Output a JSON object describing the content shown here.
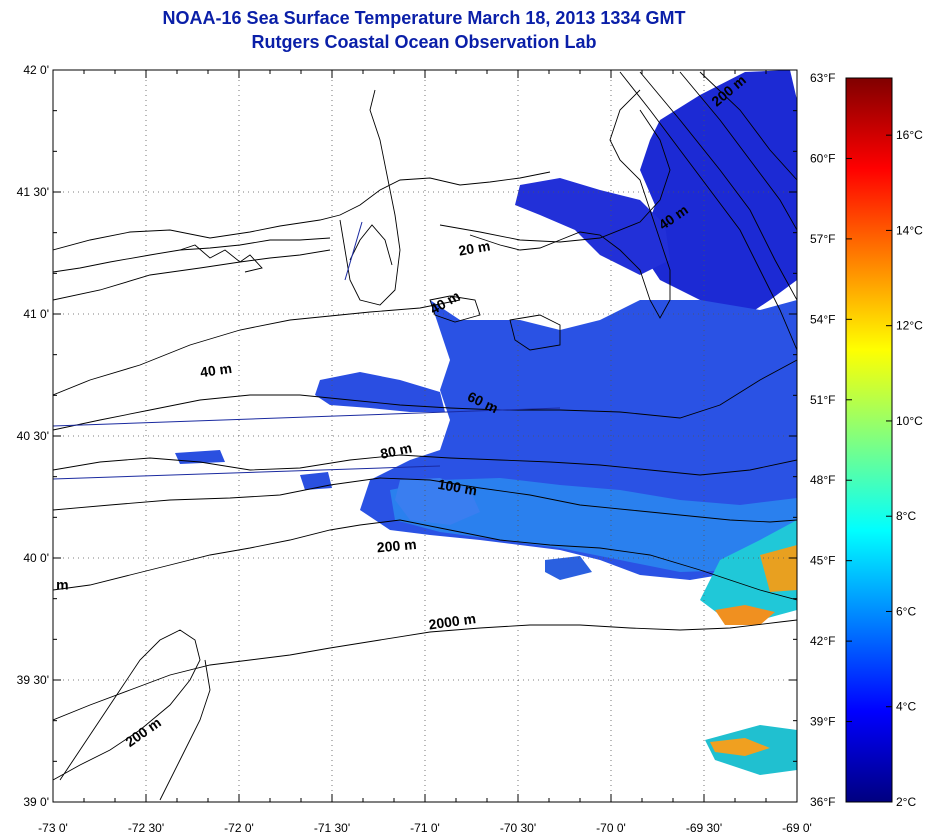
{
  "title": {
    "line1": "NOAA-16 Sea Surface Temperature March 18, 2013 1334 GMT",
    "line2": "Rutgers Coastal Ocean Observation Lab"
  },
  "map": {
    "lat_range": [
      39.0,
      42.0
    ],
    "lon_range": [
      -73.0,
      -69.0
    ],
    "lat_ticks": [
      "39 0'",
      "39 30'",
      "40 0'",
      "40 30'",
      "41 0'",
      "41 30'",
      "42 0'"
    ],
    "lon_ticks": [
      "-73 0'",
      "-72 30'",
      "-72 0'",
      "-71 30'",
      "-71 0'",
      "-70 30'",
      "-70 0'",
      "-69 30'",
      "-69 0'"
    ],
    "grid": "dotted",
    "contour_labels": [
      {
        "text": "20 m",
        "lon": -70.73,
        "lat": 41.25,
        "angle": -10
      },
      {
        "text": "40 m",
        "lon": -70.88,
        "lat": 41.03,
        "angle": -30
      },
      {
        "text": "40 m",
        "lon": -72.12,
        "lat": 40.75,
        "angle": -8
      },
      {
        "text": "40 m",
        "lon": -69.65,
        "lat": 41.38,
        "angle": -35
      },
      {
        "text": "60 m",
        "lon": -70.7,
        "lat": 40.62,
        "angle": 25
      },
      {
        "text": "80 m",
        "lon": -71.15,
        "lat": 40.42,
        "angle": -12
      },
      {
        "text": "100 m",
        "lon": -70.83,
        "lat": 40.27,
        "angle": 10
      },
      {
        "text": "200 m",
        "lon": -71.15,
        "lat": 40.03,
        "angle": -5
      },
      {
        "text": "2000 m",
        "lon": -70.85,
        "lat": 39.72,
        "angle": -8
      },
      {
        "text": "200 m",
        "lon": -72.5,
        "lat": 39.27,
        "angle": -35
      },
      {
        "text": "m",
        "lon": -72.95,
        "lat": 39.87,
        "angle": 0
      },
      {
        "text": "200 m",
        "lon": -69.35,
        "lat": 41.9,
        "angle": -40
      }
    ]
  },
  "colorbar": {
    "fahrenheit_labels": [
      "63°F",
      "60°F",
      "57°F",
      "54°F",
      "51°F",
      "48°F",
      "45°F",
      "42°F",
      "39°F",
      "36°F"
    ],
    "celsius_labels": [
      "16°C",
      "14°C",
      "12°C",
      "10°C",
      "8°C",
      "6°C",
      "4°C",
      "2°C"
    ],
    "range_c": [
      2.0,
      17.2
    ],
    "stops": [
      "#000080",
      "#0000ff",
      "#0080ff",
      "#00ffff",
      "#80ff80",
      "#ffff00",
      "#ff8000",
      "#ff0000",
      "#800000"
    ]
  },
  "colors": {
    "title": "#0a1fa8",
    "water_cold": "#1a2fd0",
    "water_mid": "#2a6ae0",
    "water_warm": "#10c0d0",
    "water_hot": "#e09020"
  }
}
